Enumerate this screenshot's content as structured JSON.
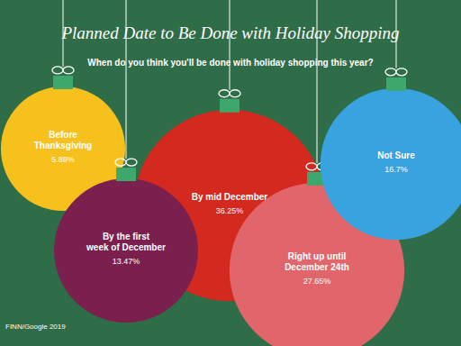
{
  "chart_data": {
    "type": "bubble",
    "title": "Planned Date to Be Done with Holiday Shopping",
    "subtitle": "When do you think you'll be done with holiday shopping this year?",
    "source": "FINN/Google 2019",
    "categories": [
      "Before Thanksgiving",
      "By the first week of December",
      "By mid December",
      "Right up until December 24th",
      "Not Sure"
    ],
    "values": [
      5.89,
      13.47,
      36.25,
      27.65,
      16.7
    ],
    "value_labels": [
      "5.89%",
      "13.47%",
      "36.25%",
      "27.65%",
      "16.7%"
    ],
    "colors": [
      "#f6c11c",
      "#7b1f4f",
      "#d3291f",
      "#e0666b",
      "#39a3e0"
    ],
    "data_labels": true,
    "tick_labels": false
  }
}
